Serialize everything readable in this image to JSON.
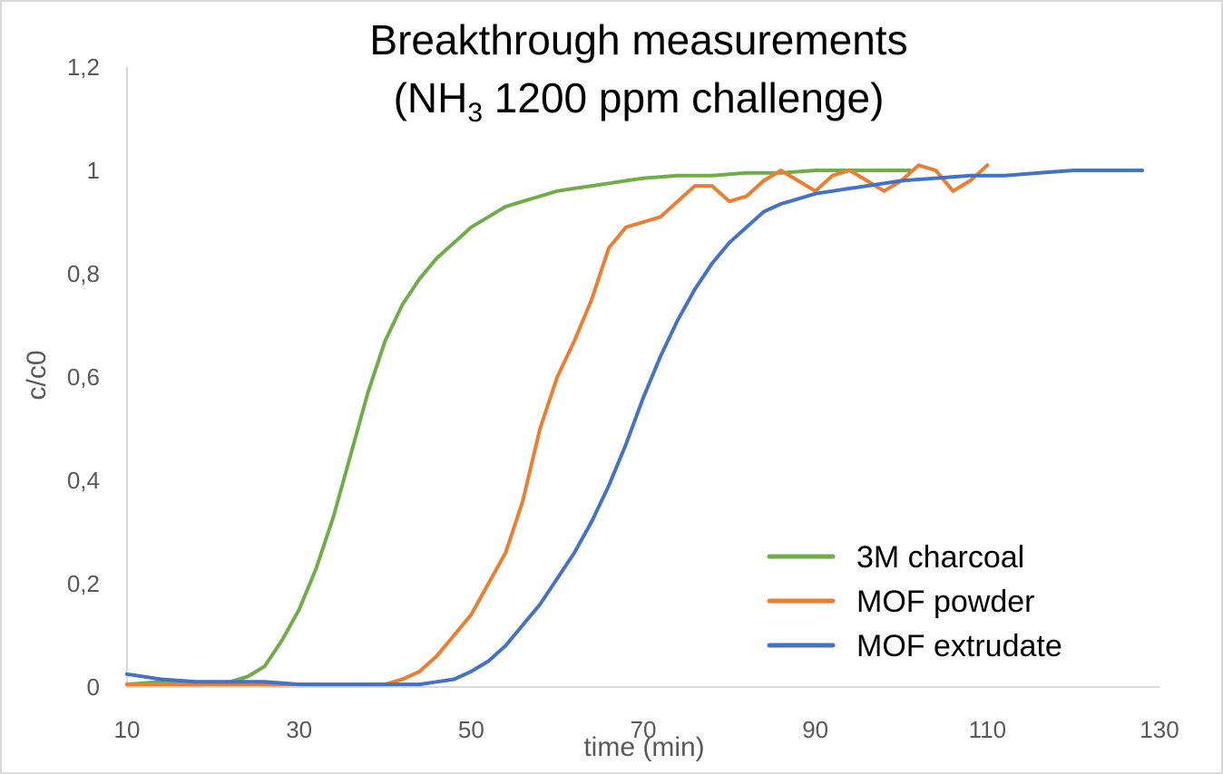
{
  "chart_data": {
    "type": "line",
    "title_line1": "Breakthrough measurements",
    "title_line2_prefix": "(NH",
    "title_line2_subscript": "3",
    "title_line2_suffix": " 1200 ppm challenge)",
    "xlabel": "time (min)",
    "ylabel": "c/c0",
    "xlim": [
      10,
      130
    ],
    "ylim": [
      0,
      1.2
    ],
    "x_ticks": [
      10,
      30,
      50,
      70,
      90,
      110,
      130
    ],
    "y_ticks": [
      0,
      0.2,
      0.4,
      0.6,
      0.8,
      1,
      1.2
    ],
    "x_tick_labels": [
      "10",
      "30",
      "50",
      "70",
      "90",
      "110",
      "130"
    ],
    "y_tick_labels": [
      "0",
      "0,2",
      "0,4",
      "0,6",
      "0,8",
      "1",
      "1,2"
    ],
    "grid": false,
    "legend_position": "bottom-right",
    "series": [
      {
        "name": "3M charcoal",
        "color": "#70ad47",
        "points": [
          [
            10,
            0.005
          ],
          [
            14,
            0.01
          ],
          [
            18,
            0.005
          ],
          [
            22,
            0.01
          ],
          [
            24,
            0.02
          ],
          [
            26,
            0.04
          ],
          [
            28,
            0.09
          ],
          [
            30,
            0.15
          ],
          [
            32,
            0.23
          ],
          [
            34,
            0.33
          ],
          [
            36,
            0.45
          ],
          [
            38,
            0.57
          ],
          [
            40,
            0.67
          ],
          [
            42,
            0.74
          ],
          [
            44,
            0.79
          ],
          [
            46,
            0.83
          ],
          [
            48,
            0.86
          ],
          [
            50,
            0.89
          ],
          [
            52,
            0.91
          ],
          [
            54,
            0.93
          ],
          [
            56,
            0.94
          ],
          [
            58,
            0.95
          ],
          [
            60,
            0.96
          ],
          [
            62,
            0.965
          ],
          [
            64,
            0.97
          ],
          [
            66,
            0.975
          ],
          [
            68,
            0.98
          ],
          [
            70,
            0.985
          ],
          [
            74,
            0.99
          ],
          [
            78,
            0.99
          ],
          [
            82,
            0.995
          ],
          [
            86,
            0.995
          ],
          [
            90,
            1.0
          ],
          [
            94,
            1.0
          ],
          [
            98,
            1.0
          ],
          [
            101,
            1.0
          ]
        ]
      },
      {
        "name": "MOF powder",
        "color": "#ed7d31",
        "points": [
          [
            10,
            0.005
          ],
          [
            20,
            0.005
          ],
          [
            30,
            0.005
          ],
          [
            38,
            0.005
          ],
          [
            40,
            0.005
          ],
          [
            42,
            0.015
          ],
          [
            44,
            0.03
          ],
          [
            46,
            0.06
          ],
          [
            48,
            0.1
          ],
          [
            50,
            0.14
          ],
          [
            52,
            0.2
          ],
          [
            54,
            0.26
          ],
          [
            56,
            0.36
          ],
          [
            58,
            0.5
          ],
          [
            60,
            0.6
          ],
          [
            62,
            0.67
          ],
          [
            64,
            0.75
          ],
          [
            66,
            0.85
          ],
          [
            68,
            0.89
          ],
          [
            70,
            0.9
          ],
          [
            72,
            0.91
          ],
          [
            74,
            0.94
          ],
          [
            76,
            0.97
          ],
          [
            78,
            0.97
          ],
          [
            80,
            0.94
          ],
          [
            82,
            0.95
          ],
          [
            84,
            0.98
          ],
          [
            86,
            1.0
          ],
          [
            88,
            0.98
          ],
          [
            90,
            0.96
          ],
          [
            92,
            0.99
          ],
          [
            94,
            1.0
          ],
          [
            96,
            0.98
          ],
          [
            98,
            0.96
          ],
          [
            100,
            0.98
          ],
          [
            102,
            1.01
          ],
          [
            104,
            1.0
          ],
          [
            106,
            0.96
          ],
          [
            108,
            0.98
          ],
          [
            110,
            1.01
          ]
        ]
      },
      {
        "name": "MOF extrudate",
        "color": "#4472c4",
        "points": [
          [
            10,
            0.025
          ],
          [
            14,
            0.015
          ],
          [
            18,
            0.01
          ],
          [
            22,
            0.01
          ],
          [
            26,
            0.01
          ],
          [
            30,
            0.005
          ],
          [
            34,
            0.005
          ],
          [
            38,
            0.005
          ],
          [
            42,
            0.005
          ],
          [
            44,
            0.005
          ],
          [
            46,
            0.01
          ],
          [
            48,
            0.015
          ],
          [
            50,
            0.03
          ],
          [
            52,
            0.05
          ],
          [
            54,
            0.08
          ],
          [
            56,
            0.12
          ],
          [
            58,
            0.16
          ],
          [
            60,
            0.21
          ],
          [
            62,
            0.26
          ],
          [
            64,
            0.32
          ],
          [
            66,
            0.39
          ],
          [
            68,
            0.47
          ],
          [
            70,
            0.56
          ],
          [
            72,
            0.64
          ],
          [
            74,
            0.71
          ],
          [
            76,
            0.77
          ],
          [
            78,
            0.82
          ],
          [
            80,
            0.86
          ],
          [
            82,
            0.89
          ],
          [
            84,
            0.92
          ],
          [
            86,
            0.935
          ],
          [
            88,
            0.945
          ],
          [
            90,
            0.955
          ],
          [
            92,
            0.96
          ],
          [
            94,
            0.965
          ],
          [
            96,
            0.97
          ],
          [
            98,
            0.975
          ],
          [
            100,
            0.98
          ],
          [
            104,
            0.985
          ],
          [
            108,
            0.99
          ],
          [
            112,
            0.99
          ],
          [
            116,
            0.995
          ],
          [
            120,
            1.0
          ],
          [
            124,
            1.0
          ],
          [
            128,
            1.0
          ]
        ]
      }
    ]
  }
}
